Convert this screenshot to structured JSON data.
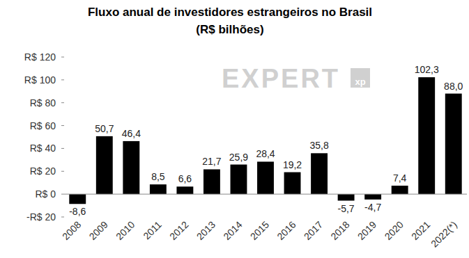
{
  "chart_data": {
    "type": "bar",
    "title": "Fluxo anual de investidores estrangeiros no Brasil",
    "subtitle": "(R$ bilhões)",
    "annotations": [
      "EXPERT",
      "xp"
    ],
    "categories": [
      "2008",
      "2009",
      "2010",
      "2011",
      "2012",
      "2013",
      "2014",
      "2015",
      "2016",
      "2017",
      "2018",
      "2019",
      "2020",
      "2021",
      "2022(*)"
    ],
    "values": [
      -8.6,
      50.7,
      46.4,
      8.5,
      6.6,
      21.7,
      25.9,
      28.4,
      19.2,
      35.8,
      -5.7,
      -4.7,
      7.4,
      102.3,
      88.0
    ],
    "value_labels": [
      "-8,6",
      "50,7",
      "46,4",
      "8,5",
      "6,6",
      "21,7",
      "25,9",
      "28,4",
      "19,2",
      "35,8",
      "-5,7",
      "-4,7",
      "7,4",
      "102,3",
      "88,0"
    ],
    "color": "#000000",
    "ylim": [
      -20,
      120
    ],
    "yticks": [
      {
        "value": -20,
        "label": "-R$ 20"
      },
      {
        "value": 0,
        "label": "R$ 0"
      },
      {
        "value": 20,
        "label": "R$ 20"
      },
      {
        "value": 40,
        "label": "R$ 40"
      },
      {
        "value": 60,
        "label": "R$ 60"
      },
      {
        "value": 80,
        "label": "R$ 80"
      },
      {
        "value": 100,
        "label": "R$ 100"
      },
      {
        "value": 120,
        "label": "R$ 120"
      }
    ],
    "grid": false,
    "data_labels": true
  }
}
